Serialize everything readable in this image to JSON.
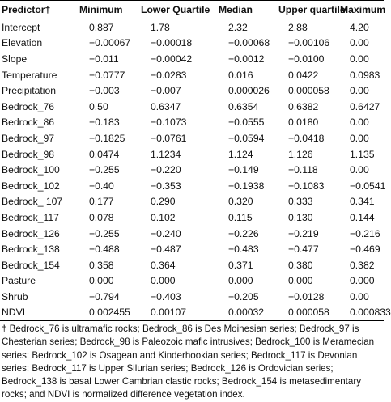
{
  "table": {
    "header": [
      "Predictor†",
      "Minimum",
      "Lower Quartile",
      "Median",
      "Upper quartile",
      "Maximum"
    ],
    "rows": [
      [
        "Intercept",
        "0.887",
        "1.78",
        "2.32",
        "2.88",
        "4.20"
      ],
      [
        "Elevation",
        "−0.00067",
        "−0.00018",
        "−0.00068",
        "−0.00106",
        "0.00"
      ],
      [
        "Slope",
        "−0.011",
        "−0.00042",
        "−0.0012",
        "−0.0100",
        "0.00"
      ],
      [
        "Temperature",
        "−0.0777",
        "−0.0283",
        "0.016",
        "0.0422",
        "0.0983"
      ],
      [
        "Precipitation",
        "−0.003",
        "−0.007",
        "0.000026",
        "0.000058",
        "0.00"
      ],
      [
        "Bedrock_76",
        "0.50",
        "0.6347",
        "0.6354",
        "0.6382",
        "0.6427"
      ],
      [
        "Bedrock_86",
        "−0.183",
        "−0.1073",
        "−0.0555",
        "0.0180",
        "0.00"
      ],
      [
        "Bedrock_97",
        "−0.1825",
        "−0.0761",
        "−0.0594",
        "−0.0418",
        "0.00"
      ],
      [
        "Bedrock_98",
        "0.0474",
        "1.1234",
        "1.124",
        "1.126",
        "1.135"
      ],
      [
        "Bedrock_100",
        "−0.255",
        "−0.220",
        "−0.149",
        "−0.118",
        "0.00"
      ],
      [
        "Bedrock_102",
        "−0.40",
        "−0.353",
        "−0.1938",
        "−0.1083",
        "−0.0541"
      ],
      [
        "Bedrock_ 107",
        "0.177",
        "0.290",
        "0.320",
        "0.333",
        "0.341"
      ],
      [
        "Bedrock_117",
        "0.078",
        "0.102",
        "0.115",
        "0.130",
        "0.144"
      ],
      [
        "Bedrock_126",
        "−0.255",
        "−0.240",
        "−0.226",
        "−0.219",
        "−0.216"
      ],
      [
        "Bedrock_138",
        "−0.488",
        "−0.487",
        "−0.483",
        "−0.477",
        "−0.469"
      ],
      [
        "Bedrock_154",
        "0.358",
        "0.364",
        "0.371",
        "0.380",
        "0.382"
      ],
      [
        "Pasture",
        "0.000",
        "0.000",
        "0.000",
        "0.000",
        "0.000"
      ],
      [
        "Shrub",
        "−0.794",
        "−0.403",
        "−0.205",
        "−0.0128",
        "0.00"
      ],
      [
        "NDVI",
        "0.002455",
        "0.00107",
        "0.00032",
        "0.000058",
        "0.000833"
      ]
    ]
  },
  "footnote": "† Bedrock_76 is ultramafic rocks; Bedrock_86 is Des Moinesian series; Bedrock_97 is Chesterian series; Bedrock_98 is Paleozoic mafic intrusives; Bedrock_100 is Meramecian series; Bedrock_102 is Osagean and Kinderhookian series; Bedrock_117 is Devonian series; Bedrock_117 is Upper Silurian series; Bedrock_126 is Ordovician series; Bedrock_138 is basal Lower Cambrian clastic rocks; Bedrock_154 is metasedimentary rocks; and NDVI is normalized difference vegetation index."
}
